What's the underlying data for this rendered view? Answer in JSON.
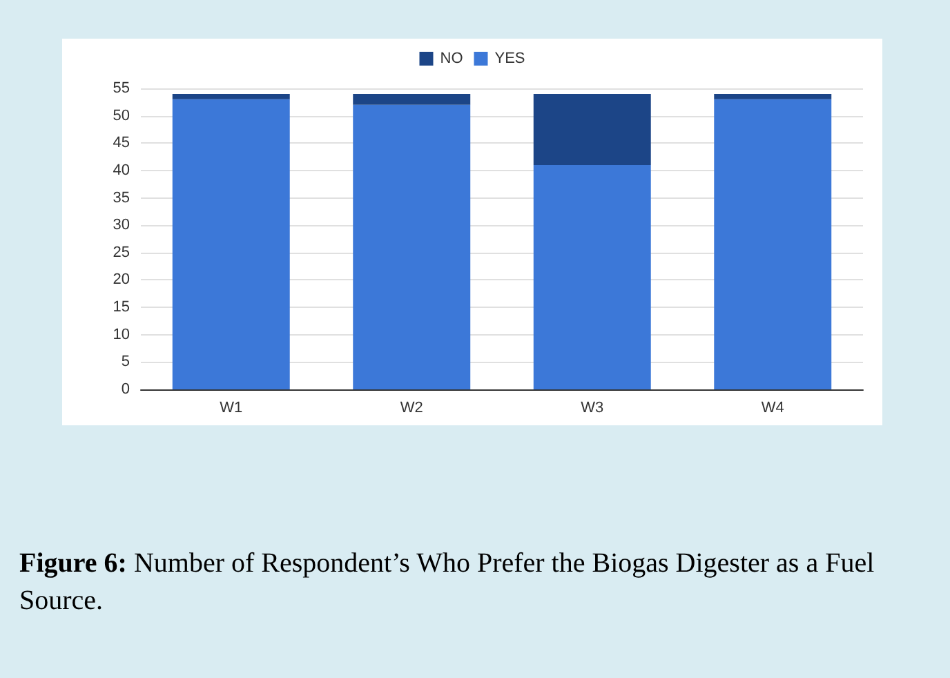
{
  "chart_data": {
    "type": "bar",
    "stacked": true,
    "categories": [
      "W1",
      "W2",
      "W3",
      "W4"
    ],
    "series": [
      {
        "name": "YES",
        "color": "#3c78d8",
        "values": [
          53,
          52,
          41,
          53
        ]
      },
      {
        "name": "NO",
        "color": "#1c4587",
        "values": [
          1,
          2,
          13,
          1
        ]
      }
    ],
    "ylim": [
      0,
      55
    ],
    "yticks": [
      0,
      5,
      10,
      15,
      20,
      25,
      30,
      35,
      40,
      45,
      50,
      55
    ],
    "grid": "y",
    "legend": "top",
    "annotations": [
      "Figure 6: Number of Respondent’s Who Prefer the Biogas Digester as a Fuel Source."
    ]
  }
}
